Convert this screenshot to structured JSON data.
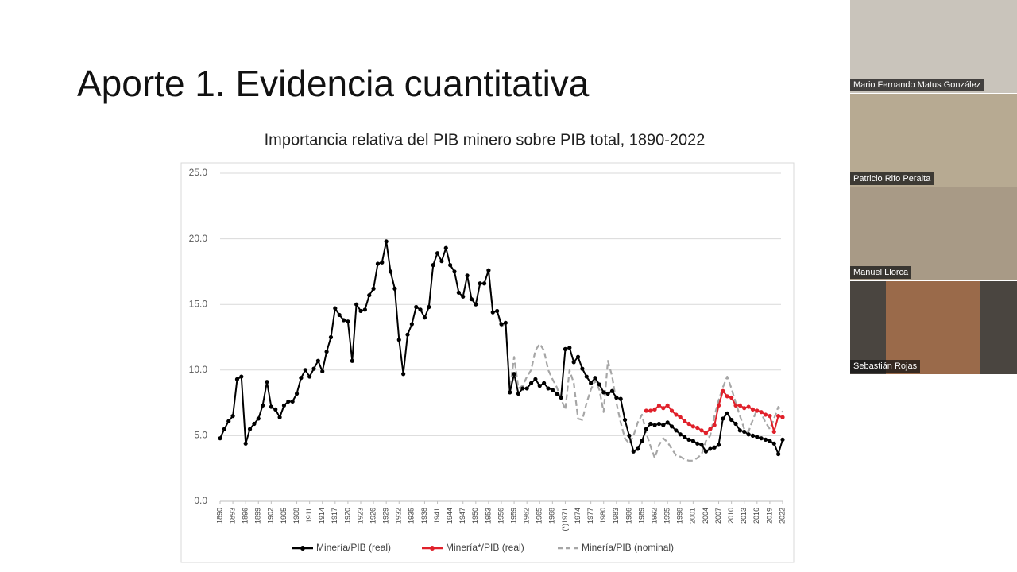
{
  "slide": {
    "title": "Aporte 1. Evidencia cuantitativa"
  },
  "participants": [
    {
      "name": "Mario Fernando Matus González"
    },
    {
      "name": "Patricio Rifo Peralta"
    },
    {
      "name": "Manuel Llorca"
    },
    {
      "name": "Sebastián Rojas"
    }
  ],
  "chart_data": {
    "type": "line",
    "title": "Importancia relativa del PIB minero sobre PIB total, 1890-2022",
    "x": [
      1890,
      1891,
      1892,
      1893,
      1894,
      1895,
      1896,
      1897,
      1898,
      1899,
      1900,
      1901,
      1902,
      1903,
      1904,
      1905,
      1906,
      1907,
      1908,
      1909,
      1910,
      1911,
      1912,
      1913,
      1914,
      1915,
      1916,
      1917,
      1918,
      1919,
      1920,
      1921,
      1922,
      1923,
      1924,
      1925,
      1926,
      1927,
      1928,
      1929,
      1930,
      1931,
      1932,
      1933,
      1934,
      1935,
      1936,
      1937,
      1938,
      1939,
      1940,
      1941,
      1942,
      1943,
      1944,
      1945,
      1946,
      1947,
      1948,
      1949,
      1950,
      1951,
      1952,
      1953,
      1954,
      1955,
      1956,
      1957,
      1958,
      1959,
      1960,
      1961,
      1962,
      1963,
      1964,
      1965,
      1966,
      1967,
      1968,
      1969,
      1970,
      1971,
      1972,
      1973,
      1974,
      1975,
      1976,
      1977,
      1978,
      1979,
      1980,
      1981,
      1982,
      1983,
      1984,
      1985,
      1986,
      1987,
      1988,
      1989,
      1990,
      1991,
      1992,
      1993,
      1994,
      1995,
      1996,
      1997,
      1998,
      1999,
      2000,
      2001,
      2002,
      2003,
      2004,
      2005,
      2006,
      2007,
      2008,
      2009,
      2010,
      2011,
      2012,
      2013,
      2014,
      2015,
      2016,
      2017,
      2018,
      2019,
      2020,
      2021,
      2022
    ],
    "series": [
      {
        "name": "Minería/PIB (real)",
        "color": "#000000",
        "markers": true,
        "dash": false,
        "values": [
          4.8,
          5.5,
          6.1,
          6.5,
          9.3,
          9.5,
          4.4,
          5.5,
          5.9,
          6.3,
          7.3,
          9.1,
          7.2,
          7.0,
          6.4,
          7.3,
          7.6,
          7.6,
          8.2,
          9.4,
          10.0,
          9.5,
          10.1,
          10.7,
          9.9,
          11.4,
          12.5,
          14.7,
          14.2,
          13.8,
          13.7,
          10.7,
          15.0,
          14.5,
          14.6,
          15.7,
          16.2,
          18.1,
          18.2,
          19.8,
          17.5,
          16.2,
          12.3,
          9.7,
          12.7,
          13.5,
          14.8,
          14.6,
          14.0,
          14.8,
          18.0,
          18.9,
          18.3,
          19.3,
          18.0,
          17.5,
          15.9,
          15.6,
          17.2,
          15.4,
          15.0,
          16.6,
          16.6,
          17.6,
          14.4,
          14.5,
          13.5,
          13.6,
          8.3,
          9.7,
          8.2,
          8.6,
          8.6,
          9.0,
          9.3,
          8.8,
          9.0,
          8.6,
          8.5,
          8.2,
          7.9,
          11.6,
          11.7,
          10.6,
          11.0,
          10.1,
          9.5,
          9.0,
          9.4,
          8.9,
          8.3,
          8.2,
          8.4,
          7.9,
          7.8,
          6.2,
          5.0,
          3.8,
          4.0,
          4.6,
          5.5,
          5.9,
          5.8,
          5.9,
          5.8,
          6.0,
          5.7,
          5.4,
          5.1,
          4.9,
          4.7,
          4.6,
          4.4,
          4.3,
          3.8,
          4.0,
          4.1,
          4.3,
          6.3,
          6.7,
          6.2,
          5.9,
          5.4,
          5.3,
          5.1,
          5.0,
          4.9,
          4.8,
          4.7,
          4.6,
          4.4,
          3.6,
          4.7
        ]
      },
      {
        "name": "Minería*/PIB (real)",
        "color": "#e0202a",
        "markers": true,
        "dash": false,
        "values": [
          null,
          null,
          null,
          null,
          null,
          null,
          null,
          null,
          null,
          null,
          null,
          null,
          null,
          null,
          null,
          null,
          null,
          null,
          null,
          null,
          null,
          null,
          null,
          null,
          null,
          null,
          null,
          null,
          null,
          null,
          null,
          null,
          null,
          null,
          null,
          null,
          null,
          null,
          null,
          null,
          null,
          null,
          null,
          null,
          null,
          null,
          null,
          null,
          null,
          null,
          null,
          null,
          null,
          null,
          null,
          null,
          null,
          null,
          null,
          null,
          null,
          null,
          null,
          null,
          null,
          null,
          null,
          null,
          null,
          null,
          null,
          null,
          null,
          null,
          null,
          null,
          null,
          null,
          null,
          null,
          null,
          null,
          null,
          null,
          null,
          null,
          null,
          null,
          null,
          null,
          null,
          null,
          null,
          null,
          null,
          null,
          null,
          null,
          null,
          null,
          6.9,
          6.9,
          7.0,
          7.3,
          7.1,
          7.3,
          6.9,
          6.6,
          6.4,
          6.1,
          5.9,
          5.7,
          5.6,
          5.4,
          5.2,
          5.5,
          5.8,
          7.3,
          8.4,
          8.0,
          7.9,
          7.3,
          7.3,
          7.1,
          7.2,
          7.0,
          6.9,
          6.8,
          6.6,
          6.5,
          5.3,
          6.5,
          6.4
        ]
      },
      {
        "name": "Minería/PIB (nominal)",
        "color": "#a6a6a6",
        "markers": false,
        "dash": true,
        "values": [
          null,
          null,
          null,
          null,
          null,
          null,
          null,
          null,
          null,
          null,
          null,
          null,
          null,
          null,
          null,
          null,
          null,
          null,
          null,
          null,
          null,
          null,
          null,
          null,
          null,
          null,
          null,
          null,
          null,
          null,
          null,
          null,
          null,
          null,
          null,
          null,
          null,
          null,
          null,
          null,
          null,
          null,
          null,
          null,
          null,
          null,
          null,
          null,
          null,
          null,
          null,
          null,
          null,
          null,
          null,
          null,
          null,
          null,
          null,
          null,
          null,
          null,
          null,
          17.6,
          14.4,
          14.5,
          13.3,
          13.6,
          8.5,
          11.0,
          8.6,
          8.8,
          9.5,
          10.0,
          11.5,
          12.0,
          11.5,
          10.0,
          9.3,
          8.7,
          7.8,
          7.0,
          10.0,
          9.0,
          6.3,
          6.2,
          7.5,
          8.5,
          9.2,
          8.5,
          6.8,
          10.7,
          9.5,
          7.5,
          6.0,
          4.8,
          4.4,
          5.0,
          6.0,
          6.6,
          5.2,
          4.2,
          3.3,
          4.3,
          4.8,
          4.5,
          4.0,
          3.5,
          3.4,
          3.2,
          3.1,
          3.1,
          3.3,
          3.6,
          4.6,
          5.0,
          6.5,
          7.7,
          8.7,
          9.5,
          8.6,
          7.5,
          6.5,
          5.5,
          5.3,
          6.2,
          7.0,
          6.7,
          6.0,
          5.5,
          6.3,
          7.2,
          6.8
        ]
      }
    ],
    "xlim": [
      1890,
      2022
    ],
    "xticks": [
      1890,
      1893,
      1896,
      1899,
      1902,
      1905,
      1908,
      1911,
      1914,
      1917,
      1920,
      1923,
      1926,
      1929,
      1932,
      1935,
      1938,
      1941,
      1944,
      1947,
      1950,
      1953,
      1956,
      1959,
      1962,
      1965,
      1968,
      {
        "value": 1971,
        "label": "(*)1971"
      },
      1974,
      1977,
      1980,
      1983,
      1986,
      1989,
      1992,
      1995,
      1998,
      2001,
      2004,
      2007,
      2010,
      2013,
      2016,
      2019,
      2022
    ],
    "ylim": [
      0,
      25
    ],
    "yticks": [
      {
        "value": 0,
        "label": "0.0"
      },
      {
        "value": 5,
        "label": "5.0"
      },
      {
        "value": 10,
        "label": "10.0"
      },
      {
        "value": 15,
        "label": "15.0"
      },
      {
        "value": 20,
        "label": "20.0"
      },
      {
        "value": 25,
        "label": "25.0"
      }
    ],
    "grid": true,
    "legend": "bottom"
  }
}
